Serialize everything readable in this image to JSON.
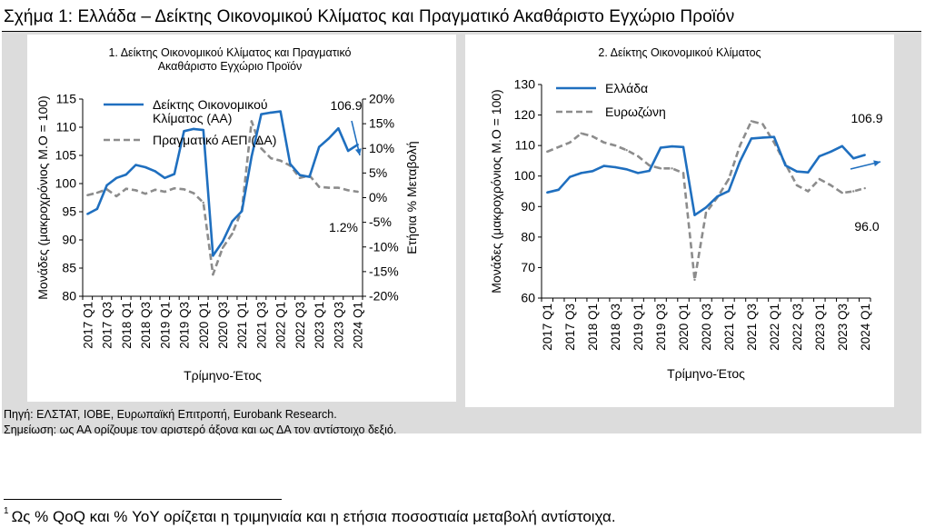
{
  "figure": {
    "title": "Σχήμα 1: Ελλάδα – Δείκτης Οικονομικού Κλίματος και Πραγματικό Ακαθάριστο Εγχώριο Προϊόν",
    "source": "Πηγή: ΕΛΣΤΑΤ, ΙΟΒΕ, Ευρωπαϊκή Επιτροπή, Eurobank Research.",
    "note": "Σημείωση: ως ΑΑ ορίζουμε τον αριστερό άξονα και ως ΔΑ τον αντίστοιχο δεξιό.",
    "footnote_number": "1",
    "footnote": "Ως % QoQ και % YoY ορίζεται η τριμηνιαία και η ετήσια ποσοστιαία μεταβολή αντίστοιχα.",
    "colors": {
      "blue": "#1f6fbf",
      "gray": "#8c8c8c",
      "background": "#dcdcdc"
    }
  },
  "chart_data": [
    {
      "type": "line",
      "title": "1. Δείκτης Οικονομικού Κλίματος και Πραγματικό Ακαθάριστο Εγχώριο Προϊόν",
      "title_lines": [
        "1. Δείκτης Οικονομικού Κλίματος και Πραγματικό",
        "Ακαθάριστο Εγχώριο Προϊόν"
      ],
      "xlabel": "Τρίμηνο-Έτος",
      "ylabel": "Μονάδες (μακροχρόνιος Μ.Ο = 100)",
      "y2label": "Ετήσια % Μεταβολή",
      "ylim": [
        80,
        115
      ],
      "y_ticks": [
        "80",
        "85",
        "90",
        "95",
        "100",
        "105",
        "110",
        "115"
      ],
      "y2lim": [
        -20,
        20
      ],
      "y2_ticks": [
        "-20%",
        "-15%",
        "-10%",
        "-5%",
        "0%",
        "5%",
        "10%",
        "15%",
        "20%"
      ],
      "x_tick_labels": [
        "2017 Q1",
        "2017 Q3",
        "2018 Q1",
        "2018 Q3",
        "2019 Q1",
        "2019 Q3",
        "2020 Q1",
        "2020 Q3",
        "2021 Q1",
        "2021 Q3",
        "2022 Q1",
        "2022 Q3",
        "2023 Q1",
        "2023 Q3",
        "2024 Q1"
      ],
      "categories": [
        "2017 Q1",
        "2017 Q2",
        "2017 Q3",
        "2017 Q4",
        "2018 Q1",
        "2018 Q2",
        "2018 Q3",
        "2018 Q4",
        "2019 Q1",
        "2019 Q2",
        "2019 Q3",
        "2019 Q4",
        "2020 Q1",
        "2020 Q2",
        "2020 Q3",
        "2020 Q4",
        "2021 Q1",
        "2021 Q2",
        "2021 Q3",
        "2021 Q4",
        "2022 Q1",
        "2022 Q2",
        "2022 Q3",
        "2022 Q4",
        "2023 Q1",
        "2023 Q2",
        "2023 Q3",
        "2023 Q4",
        "2024 Q1"
      ],
      "legend_position": "top",
      "series": [
        {
          "name": "Δείκτης Οικονομικού Κλίματος (ΑΑ)",
          "legend_lines": [
            "Δείκτης Οικονομικού",
            "Κλίματος (ΑΑ)"
          ],
          "axis": "left",
          "style": "solid",
          "color": "#1f6fbf",
          "values": [
            94.6,
            95.5,
            99.7,
            101.0,
            101.6,
            103.3,
            102.9,
            102.2,
            101.0,
            101.7,
            109.3,
            109.7,
            109.5,
            87.2,
            89.7,
            93.3,
            95.1,
            104.8,
            112.3,
            112.6,
            112.8,
            103.5,
            101.5,
            101.2,
            106.5,
            108.0,
            109.8,
            105.8,
            106.9
          ]
        },
        {
          "name": "Πραγματικό ΑΕΠ (ΔΑ)",
          "axis": "right",
          "style": "dashed",
          "color": "#8c8c8c",
          "values": [
            0.5,
            1.0,
            1.7,
            0.3,
            1.8,
            1.5,
            0.8,
            1.6,
            1.2,
            1.9,
            1.7,
            0.9,
            -1.0,
            -15.6,
            -10.2,
            -7.3,
            -2.5,
            15.5,
            10.0,
            8.0,
            7.5,
            6.5,
            4.0,
            4.5,
            2.2,
            2.0,
            2.0,
            1.5,
            1.2
          ]
        }
      ],
      "annotations": [
        {
          "text": "106.9",
          "refers_to": "Δείκτης Οικονομικού Κλίματος (ΑΑ)",
          "value": 106.9
        },
        {
          "text": "1.2%",
          "refers_to": "Πραγματικό ΑΕΠ (ΔΑ)",
          "value": 1.2
        }
      ]
    },
    {
      "type": "line",
      "title": "2. Δείκτης Οικονομικού Κλίματος",
      "xlabel": "Τρίμηνο-Έτος",
      "ylabel": "Μονάδες (μακροχρόνιος Μ.Ο = 100)",
      "ylim": [
        60,
        130
      ],
      "y_ticks": [
        "60",
        "70",
        "80",
        "90",
        "100",
        "110",
        "120",
        "130"
      ],
      "x_tick_labels": [
        "2017 Q1",
        "2017 Q3",
        "2018 Q1",
        "2018 Q3",
        "2019 Q1",
        "2019 Q3",
        "2020 Q1",
        "2020 Q3",
        "2021 Q1",
        "2021 Q3",
        "2022 Q1",
        "2022 Q3",
        "2023 Q1",
        "2023 Q3",
        "2024 Q1"
      ],
      "categories": [
        "2017 Q1",
        "2017 Q2",
        "2017 Q3",
        "2017 Q4",
        "2018 Q1",
        "2018 Q2",
        "2018 Q3",
        "2018 Q4",
        "2019 Q1",
        "2019 Q2",
        "2019 Q3",
        "2019 Q4",
        "2020 Q1",
        "2020 Q2",
        "2020 Q3",
        "2020 Q4",
        "2021 Q1",
        "2021 Q2",
        "2021 Q3",
        "2021 Q4",
        "2022 Q1",
        "2022 Q2",
        "2022 Q3",
        "2022 Q4",
        "2023 Q1",
        "2023 Q2",
        "2023 Q3",
        "2023 Q4",
        "2024 Q1"
      ],
      "legend_position": "top-left",
      "series": [
        {
          "name": "Ελλάδα",
          "style": "solid",
          "color": "#1f6fbf",
          "values": [
            94.6,
            95.5,
            99.7,
            101.0,
            101.6,
            103.3,
            102.9,
            102.2,
            101.0,
            101.7,
            109.3,
            109.7,
            109.5,
            87.2,
            89.7,
            93.3,
            95.1,
            104.8,
            112.3,
            112.6,
            112.8,
            103.5,
            101.5,
            101.2,
            106.5,
            108.0,
            109.8,
            105.8,
            106.9
          ]
        },
        {
          "name": "Ευρωζώνη",
          "style": "dashed",
          "color": "#8c8c8c",
          "values": [
            108.0,
            109.5,
            111.0,
            114.0,
            113.0,
            111.0,
            110.0,
            108.5,
            106.5,
            103.5,
            102.5,
            102.5,
            101.0,
            66.0,
            88.0,
            93.0,
            99.0,
            110.0,
            118.0,
            117.0,
            111.0,
            104.0,
            97.0,
            95.0,
            99.0,
            97.0,
            94.5,
            95.0,
            96.0
          ]
        }
      ],
      "annotations": [
        {
          "text": "106.9",
          "refers_to": "Ελλάδα",
          "value": 106.9
        },
        {
          "text": "96.0",
          "refers_to": "Ευρωζώνη",
          "value": 96.0
        }
      ]
    }
  ]
}
